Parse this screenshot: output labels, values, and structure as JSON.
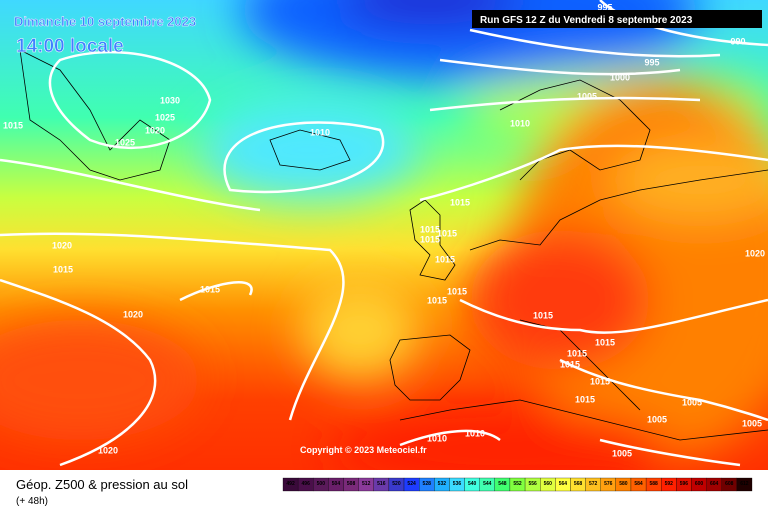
{
  "header": {
    "date": "Dimanche 10 septembre 2023",
    "time": "14:00 locale",
    "run": "Run GFS 12 Z du Vendredi 8 septembre 2023"
  },
  "copyright": "Copyright © 2023 Meteociel.fr",
  "footer": {
    "title": "Géop. Z500 & pression au sol",
    "lead": "(+ 48h)"
  },
  "isobars": {
    "labels": [
      995,
      990,
      995,
      1000,
      1005,
      1010,
      1030,
      1025,
      1020,
      1025,
      1015,
      1010,
      1015,
      1020,
      1015,
      1015,
      1020,
      1015,
      1015,
      1015,
      1015,
      1015,
      1015,
      1015,
      1015,
      1015,
      1015,
      1015,
      1005,
      1005,
      1015,
      1005,
      1010,
      1010,
      1020,
      1020,
      1005
    ]
  },
  "scale": {
    "levels": [
      492,
      496,
      500,
      504,
      508,
      512,
      516,
      520,
      524,
      528,
      532,
      536,
      540,
      544,
      548,
      552,
      556,
      560,
      564,
      568,
      572,
      576,
      580,
      584,
      588,
      592,
      596,
      600,
      604,
      608,
      612
    ],
    "colors": [
      "#3a0a3a",
      "#4a0f4a",
      "#5a1a5a",
      "#6a1f6a",
      "#7a2a7a",
      "#8a3a9a",
      "#6a3aaa",
      "#3a3acc",
      "#1e3cff",
      "#2080ff",
      "#20b0ff",
      "#3cdcff",
      "#40ffe0",
      "#40ffb0",
      "#40ff70",
      "#80ff40",
      "#b0ff40",
      "#e0ff40",
      "#ffff40",
      "#ffe030",
      "#ffc020",
      "#ffa010",
      "#ff8000",
      "#ff6000",
      "#ff4000",
      "#ff2000",
      "#e01000",
      "#c00000",
      "#a00000",
      "#700000",
      "#200000"
    ]
  }
}
